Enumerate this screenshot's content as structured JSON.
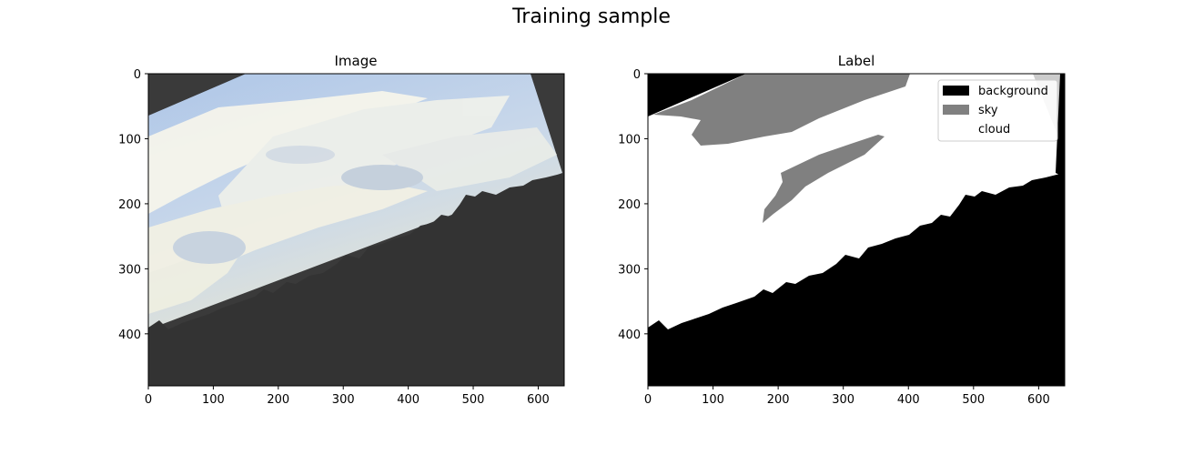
{
  "figure": {
    "title": "Training sample"
  },
  "panels": [
    {
      "title": "Image",
      "kind": "photo",
      "x_ticks": [
        "0",
        "100",
        "200",
        "300",
        "400",
        "500",
        "600"
      ],
      "y_ticks": [
        "0",
        "100",
        "200",
        "300",
        "400"
      ]
    },
    {
      "title": "Label",
      "kind": "segmentation-mask",
      "x_ticks": [
        "0",
        "100",
        "200",
        "300",
        "400",
        "500",
        "600"
      ],
      "y_ticks": [
        "0",
        "100",
        "200",
        "300",
        "400"
      ],
      "legend": {
        "placement": "top-right",
        "items": [
          {
            "label": "background",
            "color": "#000000"
          },
          {
            "label": "sky",
            "color": "#808080"
          },
          {
            "label": "cloud",
            "color": "#ffffff"
          }
        ]
      }
    }
  ],
  "colors": {
    "photo_border": "#3a3a3a",
    "photo_ground": "#333333",
    "sky_blue": "#b7cbe6",
    "cloud_white": "#f7f6ee"
  }
}
